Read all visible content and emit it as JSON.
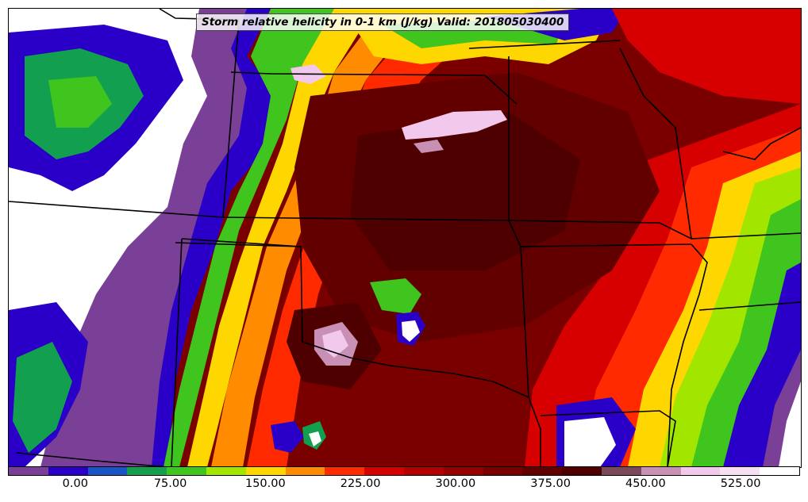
{
  "map": {
    "title": "Storm relative helicity in 0-1 km (J/kg) Valid: 201805030400",
    "variable": "storm-relative-helicity-0-1km",
    "units": "J/kg",
    "valid_time": "201805030400"
  },
  "colorbar": {
    "colors": [
      "#7a3f97",
      "#2a00c8",
      "#1a55c8",
      "#12a050",
      "#40c41e",
      "#a2e600",
      "#ffd700",
      "#ff8c00",
      "#ff2a00",
      "#d60000",
      "#b40000",
      "#960000",
      "#7a0000",
      "#620000",
      "#4e0000",
      "#7a4a5a",
      "#c890b4",
      "#f2c8ec",
      "#f8e0f4",
      "#ffffff"
    ],
    "tick_labels": [
      "0.00",
      "75.00",
      "150.00",
      "225.00",
      "300.00",
      "375.00",
      "450.00",
      "525.00"
    ]
  },
  "colors": {
    "background": "#ffffff",
    "border_lines": "#000000"
  }
}
